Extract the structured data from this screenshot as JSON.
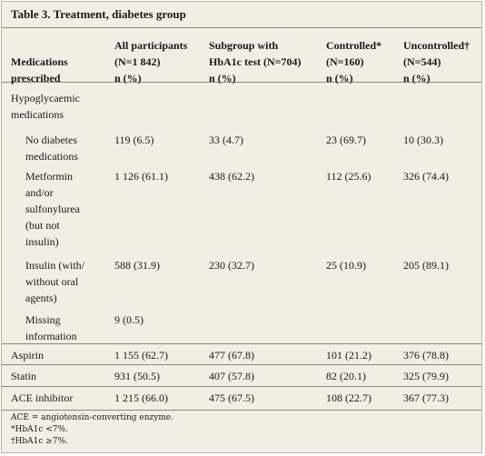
{
  "title": "Table 3. Treatment, diabetes group",
  "header": {
    "medications": [
      "Medications",
      "prescribed"
    ],
    "cols": [
      {
        "lines": [
          "All participants",
          "(N=1 842)",
          "n (%)"
        ]
      },
      {
        "lines": [
          "Subgroup with",
          "HbA1c test (N=704)",
          "n (%)"
        ]
      },
      {
        "lines": [
          "Controlled*",
          "(N=160)",
          "n (%)"
        ]
      },
      {
        "lines": [
          "Uncontrolled†",
          "(N=544)",
          "n (%)"
        ]
      }
    ]
  },
  "section": [
    "Hypoglycaemic",
    "medications"
  ],
  "rows": [
    {
      "label": [
        "No diabetes",
        "medications"
      ],
      "vals": [
        "119 (6.5)",
        "33 (4.7)",
        "23 (69.7)",
        "10 (30.3)"
      ]
    },
    {
      "label": [
        "Metformin",
        "and/or",
        "sulfonylurea",
        "(but not",
        "insulin)"
      ],
      "vals": [
        "1 126 (61.1)",
        "438 (62.2)",
        "112 (25.6)",
        "326 (74.4)"
      ]
    },
    {
      "label": [
        "Insulin (with/",
        "without oral",
        "agents)"
      ],
      "vals": [
        "588 (31.9)",
        "230 (32.7)",
        "25 (10.9)",
        "205 (89.1)"
      ]
    },
    {
      "label": [
        "Missing",
        "information"
      ],
      "vals": [
        "9 (0.5)",
        "",
        "",
        ""
      ]
    },
    {
      "label": [
        "Aspirin"
      ],
      "vals": [
        "1 155 (62.7)",
        "477 (67.8)",
        "101 (21.2)",
        "376 (78.8)"
      ]
    },
    {
      "label": [
        "Statin"
      ],
      "vals": [
        "931 (50.5)",
        "407 (57.8)",
        "82 (20.1)",
        "325 (79.9)"
      ]
    },
    {
      "label": [
        "ACE inhibitor"
      ],
      "vals": [
        "1 215 (66.0)",
        "475 (67.5)",
        "108 (22.7)",
        "367 (77.3)"
      ]
    }
  ],
  "footnotes": [
    "ACE = angiotensin-converting enzyme.",
    "*HbA1c <7%.",
    "†HbA1c ≥7%."
  ]
}
